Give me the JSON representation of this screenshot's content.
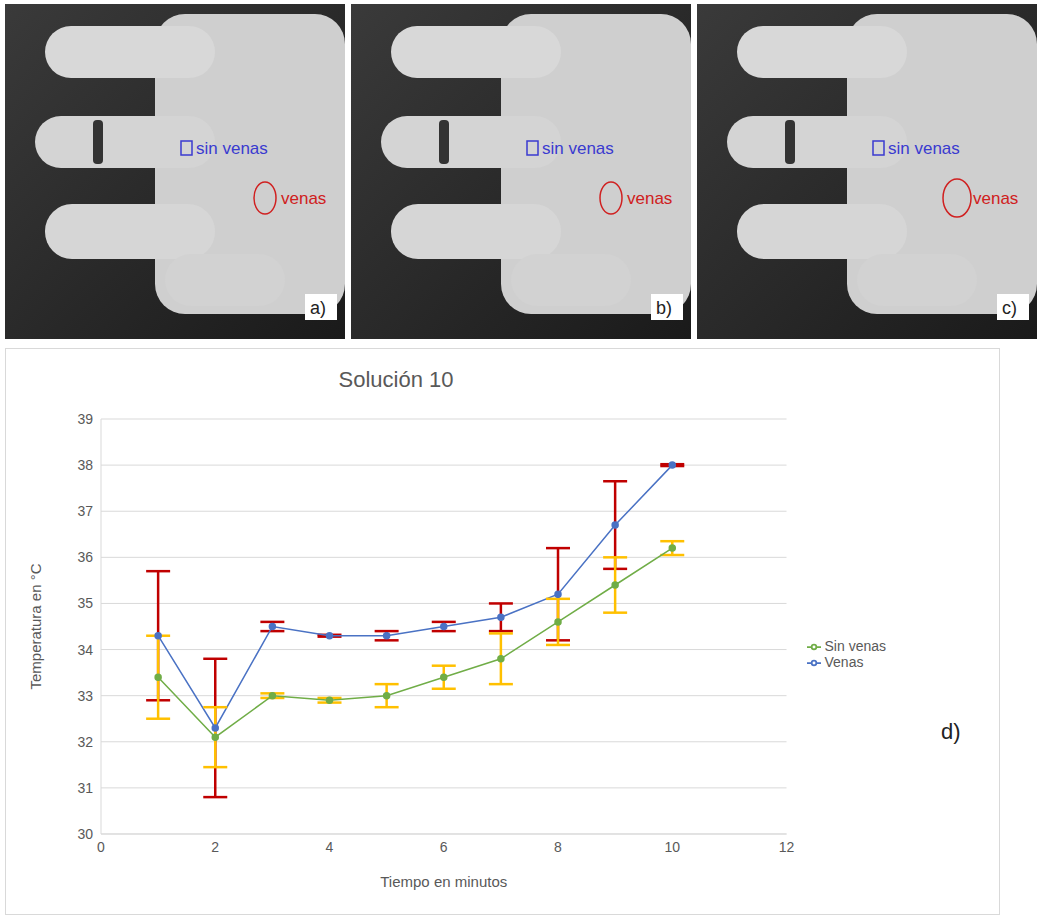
{
  "chart_data": {
    "type": "line",
    "title": "Solución 10",
    "x_label": "Tiempo en minutos",
    "y_label": "Temperatura en °C",
    "panel_label": "d)",
    "x": [
      1,
      2,
      3,
      4,
      5,
      6,
      7,
      8,
      9,
      10
    ],
    "xlim": [
      0,
      12
    ],
    "xticks": [
      0,
      2,
      4,
      6,
      8,
      10,
      12
    ],
    "ylim": [
      30,
      39
    ],
    "yticks": [
      30,
      31,
      32,
      33,
      34,
      35,
      36,
      37,
      38,
      39
    ],
    "grid": true,
    "legend": "right",
    "marker": "circle",
    "series": [
      {
        "name": "Venas",
        "color": "#4a72c4",
        "values": [
          34.3,
          32.3,
          34.5,
          34.3,
          34.3,
          34.5,
          34.7,
          35.2,
          36.7,
          38.0
        ],
        "errors": [
          1.4,
          1.5,
          0.1,
          0.02,
          0.1,
          0.1,
          0.3,
          1.0,
          0.95,
          0.02
        ]
      },
      {
        "name": "Sin venas",
        "color": "#70ad47",
        "values": [
          33.4,
          32.1,
          33.0,
          32.9,
          33.0,
          33.4,
          33.8,
          34.6,
          35.4,
          36.2
        ],
        "errors": [
          0.9,
          0.65,
          0.05,
          0.05,
          0.25,
          0.25,
          0.55,
          0.5,
          0.6,
          0.15
        ]
      }
    ]
  },
  "images": [
    {
      "label": "a)",
      "annotations": [
        {
          "text": "sin venas",
          "color": "#3a3ad0"
        },
        {
          "text": "venas",
          "color": "#d02020"
        }
      ]
    },
    {
      "label": "b)",
      "annotations": [
        {
          "text": "sin venas",
          "color": "#3a3ad0"
        },
        {
          "text": "venas",
          "color": "#d02020"
        }
      ]
    },
    {
      "label": "c)",
      "annotations": [
        {
          "text": "sin venas",
          "color": "#3a3ad0"
        },
        {
          "text": "venas",
          "color": "#d02020"
        }
      ]
    }
  ]
}
